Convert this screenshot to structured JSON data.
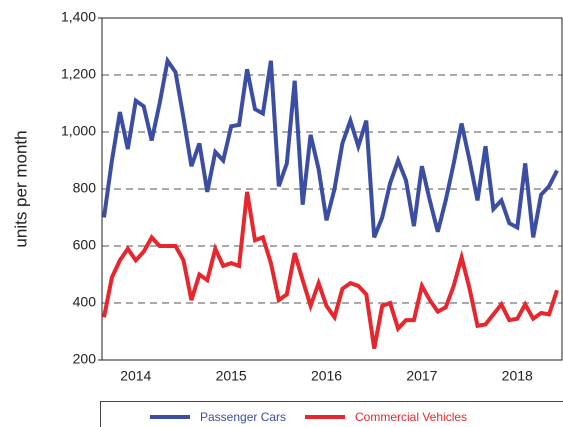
{
  "chart_data": {
    "type": "line",
    "y_label": "units per month",
    "categories": [
      null,
      null,
      null,
      null,
      "2014",
      null,
      null,
      null,
      null,
      null,
      null,
      null,
      null,
      null,
      null,
      null,
      "2015",
      null,
      null,
      null,
      null,
      null,
      null,
      null,
      null,
      null,
      null,
      null,
      "2016",
      null,
      null,
      null,
      null,
      null,
      null,
      null,
      null,
      null,
      null,
      null,
      "2017",
      null,
      null,
      null,
      null,
      null,
      null,
      null,
      null,
      null,
      null,
      null,
      "2018",
      null,
      null,
      null,
      null,
      null
    ],
    "series": [
      {
        "name": "Passenger Cars",
        "color": "#3b4ea3",
        "values": [
          700,
          900,
          1070,
          940,
          1110,
          1090,
          970,
          1100,
          1250,
          1210,
          1050,
          880,
          960,
          790,
          930,
          900,
          1020,
          1025,
          1220,
          1080,
          1065,
          1250,
          810,
          890,
          1180,
          745,
          990,
          870,
          690,
          800,
          960,
          1040,
          950,
          1040,
          630,
          700,
          820,
          900,
          830,
          670,
          880,
          760,
          650,
          760,
          890,
          1030,
          900,
          760,
          950,
          730,
          760,
          680,
          665,
          890,
          630,
          780,
          810,
          865
        ]
      },
      {
        "name": "Commercial Vehicles",
        "color": "#e8262d",
        "values": [
          350,
          490,
          550,
          590,
          550,
          580,
          630,
          600,
          600,
          600,
          550,
          410,
          500,
          480,
          590,
          530,
          540,
          530,
          790,
          620,
          630,
          540,
          410,
          430,
          575,
          480,
          390,
          470,
          390,
          350,
          450,
          470,
          460,
          430,
          240,
          390,
          400,
          310,
          340,
          340,
          460,
          410,
          370,
          385,
          460,
          560,
          450,
          320,
          325,
          360,
          395,
          340,
          345,
          395,
          345,
          365,
          360,
          445
        ]
      }
    ],
    "ylim": [
      200,
      1400
    ],
    "yticks": [
      200,
      400,
      600,
      800,
      {
        "value": 1000,
        "label": "1,000"
      },
      {
        "value": 1200,
        "label": "1,200"
      },
      {
        "value": 1400,
        "label": "1,400"
      }
    ],
    "grid": true,
    "legend": "bottom"
  }
}
